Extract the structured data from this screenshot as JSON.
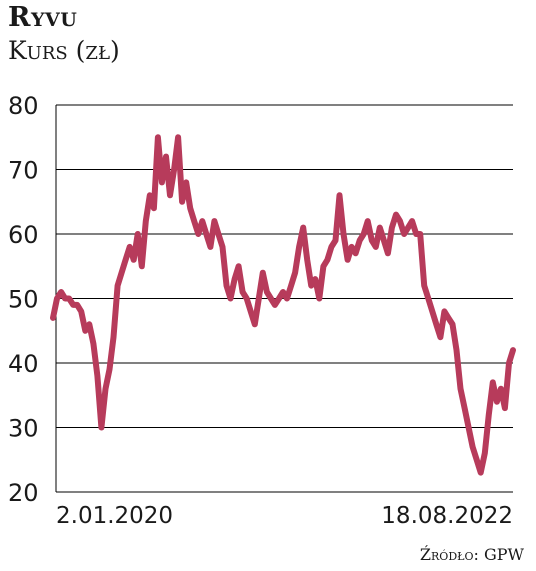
{
  "header": {
    "title": "Ryvu",
    "subtitle": "Kurs (zł)"
  },
  "footer": {
    "source": "Źródło: GPW"
  },
  "colors": {
    "line": "#b73b5b",
    "grid": "#000000",
    "text": "#1a1a1a"
  },
  "chart_data": {
    "type": "line",
    "title": "Ryvu",
    "ylabel": "Kurs (zł)",
    "xlabel": "",
    "ylim": [
      20,
      80
    ],
    "yticks": [
      80,
      70,
      60,
      50,
      40,
      30,
      20
    ],
    "xtick_labels": [
      "2.01.2020",
      "18.08.2022"
    ],
    "grid": true,
    "series": [
      {
        "x_start": "2020-01-02",
        "x_end": "2022-08-18",
        "values": [
          47,
          50,
          51,
          50,
          50,
          49,
          49,
          48,
          45,
          46,
          43,
          38,
          30,
          36,
          39,
          44,
          52,
          54,
          56,
          58,
          56,
          60,
          55,
          62,
          66,
          64,
          75,
          68,
          72,
          66,
          70,
          75,
          65,
          68,
          64,
          62,
          60,
          62,
          60,
          58,
          62,
          60,
          58,
          52,
          50,
          53,
          55,
          51,
          50,
          48,
          46,
          50,
          54,
          51,
          50,
          49,
          50,
          51,
          50,
          52,
          54,
          58,
          61,
          56,
          52,
          53,
          50,
          55,
          56,
          58,
          59,
          66,
          60,
          56,
          58,
          57,
          59,
          60,
          62,
          59,
          58,
          61,
          59,
          57,
          61,
          63,
          62,
          60,
          61,
          62,
          60,
          60,
          52,
          50,
          48,
          46,
          44,
          48,
          47,
          46,
          42,
          36,
          33,
          30,
          27,
          25,
          23,
          26,
          32,
          37,
          34,
          36,
          33,
          40,
          42
        ]
      }
    ]
  }
}
